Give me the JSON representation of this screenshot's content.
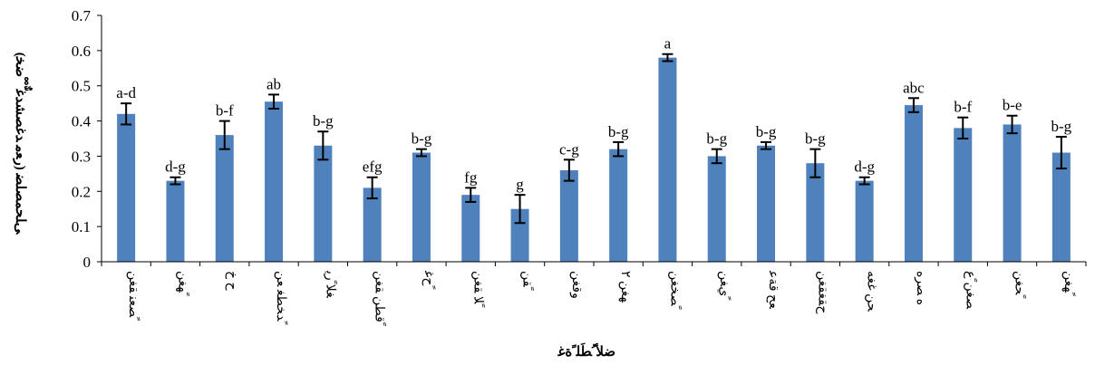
{
  "chart_data": {
    "type": "bar",
    "title": "",
    "xlabel": "ﺿﻸ ُﻄَﻠ ًﺓﻏ ْ",
    "ylabel": "ﻰﻠﺤﻤﺼﻠﻀ (ﺭﻌﻣ ﺪﻏﺼﺸﺪﻏ ٌّ ْ ْﺿﺨ)",
    "ylim": [
      0,
      0.7
    ],
    "yticks": [
      "0",
      "0.1",
      "0.2",
      "0.3",
      "0.4",
      "0.5",
      "0.6",
      "0.7"
    ],
    "bar_color": "#4f81bd",
    "grid": false,
    "legend": "none",
    "categories": [
      "ﺼﻌﻨ ﻘﻐﻦ ً",
      "ﻬﻐﻦ ً",
      "ﺡ ﺥ",
      "ﺪﺨﻄﻐ ﻌﻦ ً",
      "ﻐﻼ ًﺭﻳ",
      "ﻗﻄﻦ ﻘﻐﻦ ً",
      "ﺡﻏ ً",
      "ﻼ ﻘﻐﻦ ً",
      "ﻘﻦ ً",
      "ﻭﻗﻐﻦ",
      "ﻬﻐﻦ ٢",
      "ﺼﺨﻐﻦ ً",
      "ﻱﻐﻦ ً",
      "ﻌﺢ ﻗﺔﻋ",
      "ﺡﻘﻐﻘﻐﻦ",
      "ﺤﻦ ﻏﻐﻪ",
      "ﻩ ﺼﺮﻩ",
      "ﺼﻐﻦ ًﻉ",
      "ﺤﻐﻦ ً",
      "ﻬﻐﻦ ً"
    ],
    "values": [
      0.42,
      0.23,
      0.36,
      0.455,
      0.33,
      0.21,
      0.31,
      0.19,
      0.15,
      0.26,
      0.32,
      0.58,
      0.3,
      0.33,
      0.28,
      0.23,
      0.445,
      0.38,
      0.39,
      0.31
    ],
    "errors": [
      0.03,
      0.01,
      0.04,
      0.02,
      0.04,
      0.03,
      0.01,
      0.02,
      0.04,
      0.03,
      0.02,
      0.01,
      0.02,
      0.01,
      0.04,
      0.01,
      0.02,
      0.03,
      0.025,
      0.045
    ],
    "significance_labels": [
      "a-d",
      "d-g",
      "b-f",
      "ab",
      "b-g",
      "efg",
      "b-g",
      "fg",
      "g",
      "c-g",
      "b-g",
      "a",
      "b-g",
      "b-g",
      "b-g",
      "d-g",
      "abc",
      "b-f",
      "b-e",
      "b-g"
    ]
  }
}
